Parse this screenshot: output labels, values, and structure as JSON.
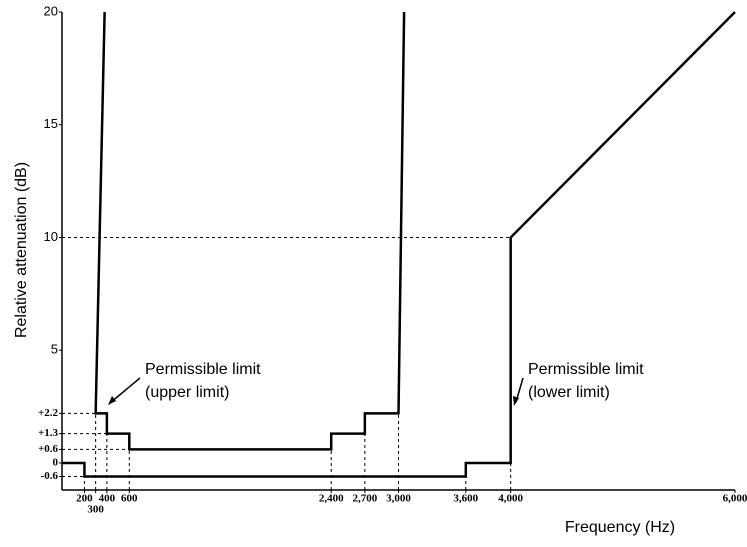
{
  "chart_data": {
    "type": "line",
    "x_label": "Frequency (Hz)",
    "y_label": "Relative attenuation (dB)",
    "xlim": [
      0,
      6000
    ],
    "ylim": [
      -1.2,
      20
    ],
    "xticks": [
      200,
      300,
      400,
      600,
      {
        "value": 2400,
        "label": "2,400"
      },
      {
        "value": 2700,
        "label": "2,700"
      },
      {
        "value": 3000,
        "label": "3,000"
      },
      {
        "value": 3600,
        "label": "3,600"
      },
      {
        "value": 4000,
        "label": "4,000"
      },
      {
        "value": 6000,
        "label": "6,000"
      }
    ],
    "yticks": [
      20,
      15,
      10,
      5,
      {
        "value": 2.2,
        "label": "+2.2"
      },
      {
        "value": 1.3,
        "label": "+1.3"
      },
      {
        "value": 0.6,
        "label": "+0.6"
      },
      0,
      -0.6
    ],
    "series": [
      {
        "color": "#000000",
        "x": [
          380,
          300,
          400,
          400,
          600,
          600,
          2400,
          2400,
          2700,
          2700,
          3000,
          3050
        ],
        "values": [
          20,
          2.2,
          2.2,
          1.3,
          1.3,
          0.6,
          0.6,
          1.3,
          1.3,
          2.2,
          2.2,
          20
        ]
      },
      {
        "color": "#000000",
        "x": [
          0,
          200,
          200,
          3600,
          3600,
          4000,
          4000,
          6000
        ],
        "values": [
          0,
          0,
          -0.6,
          -0.6,
          0,
          0,
          10,
          20
        ]
      }
    ],
    "annotations": [
      {
        "lines": [
          "Permissible limit",
          "(upper limit)"
        ]
      },
      {
        "lines": [
          "Permissible limit",
          "(lower limit)"
        ]
      }
    ]
  }
}
